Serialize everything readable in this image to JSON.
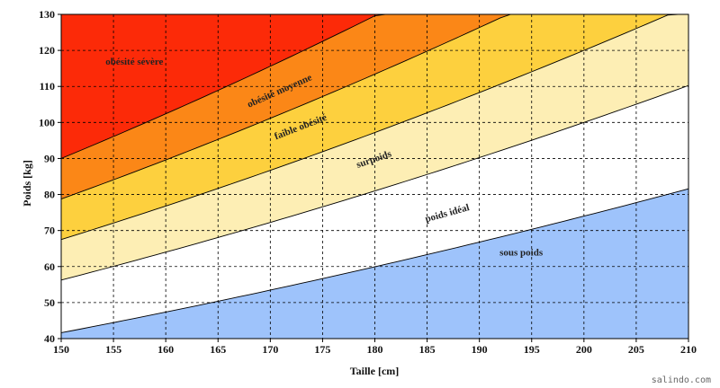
{
  "chart_data": {
    "type": "area",
    "title": "",
    "xlabel": "Taille [cm]",
    "ylabel": "Poids [kg]",
    "xlim": [
      150,
      210
    ],
    "ylim": [
      40,
      130
    ],
    "xticks": [
      150,
      155,
      160,
      165,
      170,
      175,
      180,
      185,
      190,
      195,
      200,
      205,
      210
    ],
    "yticks": [
      40,
      50,
      60,
      70,
      80,
      90,
      100,
      110,
      120,
      130
    ],
    "grid": true,
    "zones": [
      {
        "name": "sous poids",
        "bmi_upper": 18.5,
        "color": "#9ec3fb",
        "label_at": [
          194,
          63
        ]
      },
      {
        "name": "poids idéal",
        "bmi_upper": 25,
        "color": "#ffffff",
        "label_at": [
          187,
          74
        ]
      },
      {
        "name": "surpoids",
        "bmi_upper": 30,
        "color": "#fdeeb4",
        "label_at": [
          180,
          89
        ]
      },
      {
        "name": "faible obésité",
        "bmi_upper": 35,
        "color": "#fdd03e",
        "label_at": [
          173,
          98
        ]
      },
      {
        "name": "obésité moyenne",
        "bmi_upper": 40,
        "color": "#fb8717",
        "label_at": [
          171,
          108
        ]
      },
      {
        "name": "obésité sévère",
        "bmi_upper": 999,
        "color": "#fc2a08",
        "label_at": [
          157,
          116
        ]
      }
    ]
  },
  "watermark": "salindo.com"
}
